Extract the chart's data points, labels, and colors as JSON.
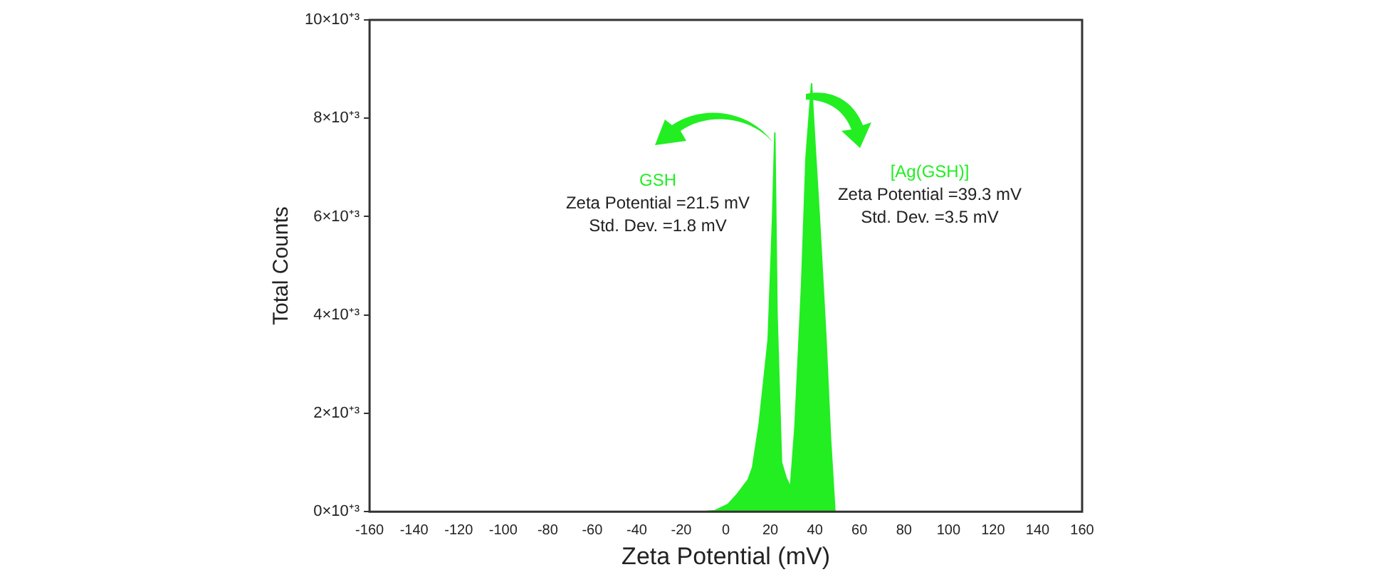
{
  "chart_data": {
    "type": "area",
    "xlabel": "Zeta Potential (mV)",
    "ylabel": "Total Counts",
    "x": [
      -160,
      -10,
      -5,
      1,
      5,
      10,
      12,
      15,
      19,
      21,
      22,
      23,
      25,
      27,
      29,
      31,
      34,
      36,
      38.5,
      40,
      42,
      45,
      47,
      49,
      160
    ],
    "series": [
      {
        "color": "#22ee22",
        "values": [
          0,
          0,
          20,
          150,
          350,
          650,
          900,
          1800,
          3500,
          6000,
          7700,
          4000,
          1000,
          700,
          500,
          1700,
          4600,
          7200,
          8700,
          7500,
          6000,
          3500,
          1500,
          0,
          0
        ]
      }
    ],
    "xlim": [
      -160,
      160
    ],
    "xticks": [
      -160,
      -140,
      -120,
      -100,
      -80,
      -60,
      -40,
      -20,
      0,
      20,
      40,
      60,
      80,
      100,
      120,
      140,
      160
    ],
    "ylim": [
      0,
      10000
    ],
    "yticks": [
      {
        "value": 0,
        "label": "0×10⁺³"
      },
      {
        "value": 2000,
        "label": "2×10⁺³"
      },
      {
        "value": 4000,
        "label": "4×10⁺³"
      },
      {
        "value": 6000,
        "label": "6×10⁺³"
      },
      {
        "value": 8000,
        "label": "8×10⁺³"
      },
      {
        "value": 10000,
        "label": "10×10⁺³"
      }
    ],
    "grid": false,
    "legend": false,
    "annotations": [
      "GSH\nZeta Potential =21.5 mV\nStd. Dev. =1.8 mV",
      "[Ag(GSH)]\nZeta Potential =39.3 mV\nStd. Dev. =3.5 mV"
    ]
  }
}
